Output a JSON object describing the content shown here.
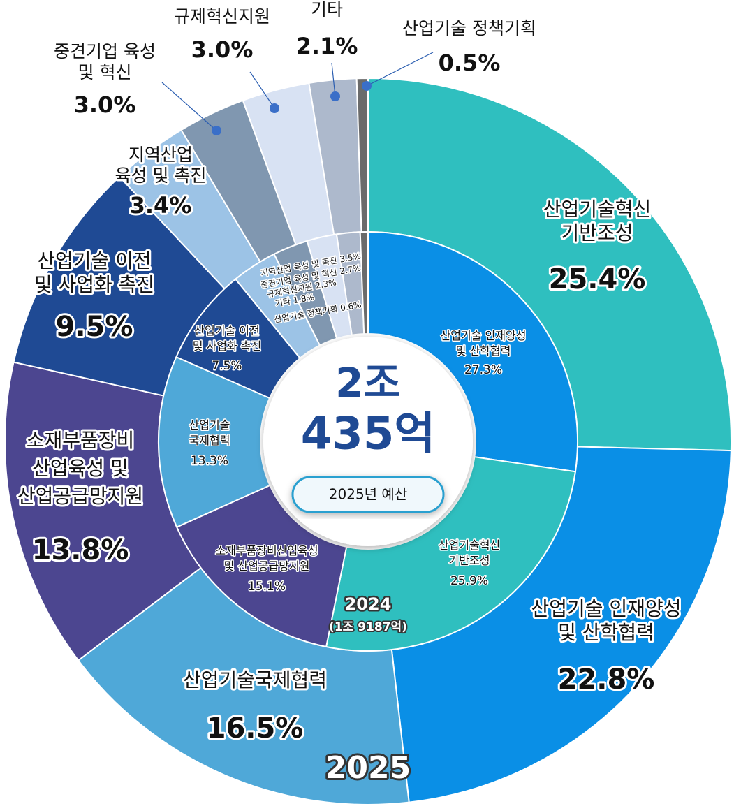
{
  "chart_data": [
    {
      "type": "pie",
      "title": "2025",
      "annotations": [
        "2조",
        "435억",
        "2025년 예산"
      ],
      "categories": [
        "산업기술혁신\n기반조성",
        "산업기술 인재양성\n및 산학협력",
        "산업기술국제협력",
        "소재부품장비\n산업육성 및\n산업공급망지원",
        "산업기술 이전\n및 사업화 촉진",
        "지역산업\n육성 및 촉진",
        "중견기업 육성\n및 혁신",
        "규제혁신지원",
        "기타",
        "산업기술 정책기획"
      ],
      "values": [
        25.4,
        22.8,
        16.5,
        13.8,
        9.5,
        3.4,
        3.0,
        3.0,
        2.1,
        0.5
      ],
      "value_labels": [
        "25.4%",
        "22.8%",
        "16.5%",
        "13.8%",
        "9.5%",
        "3.4%",
        "3.0%",
        "3.0%",
        "2.1%",
        "0.5%"
      ],
      "colors": [
        "#2fbfbf",
        "#0a8fe6",
        "#4fa8d8",
        "#4c4690",
        "#1f4a94",
        "#9cc3e6",
        "#8097b0",
        "#d8e2f3",
        "#adb9cc",
        "#6b6b6b"
      ]
    },
    {
      "type": "pie",
      "title": "2024",
      "subtitle": "(1조 9187억)",
      "categories": [
        "산업기술 인재양성\n및 산학협력",
        "산업기술혁신\n기반조성",
        "소재부품장비산업육성\n및 산업공급망지원",
        "산업기술\n국제협력",
        "산업기술 이전\n및 사업화 촉진",
        "지역산업 육성 및 촉진",
        "중견기업 육성 및 혁신",
        "규제혁신지원",
        "기타",
        "산업기술 정책기획"
      ],
      "values": [
        27.3,
        25.9,
        15.1,
        13.3,
        7.5,
        3.5,
        2.7,
        2.3,
        1.8,
        0.6
      ],
      "value_labels": [
        "27.3%",
        "25.9%",
        "15.1%",
        "13.3%",
        "7.5%",
        "3.5%",
        "2.7%",
        "2.3%",
        "1.8%",
        "0.6%"
      ],
      "colors": [
        "#0a8fe6",
        "#2fbfbf",
        "#4c4690",
        "#4fa8d8",
        "#1f4a94",
        "#9cc3e6",
        "#8097b0",
        "#d8e2f3",
        "#adb9cc",
        "#6b6b6b"
      ]
    }
  ]
}
